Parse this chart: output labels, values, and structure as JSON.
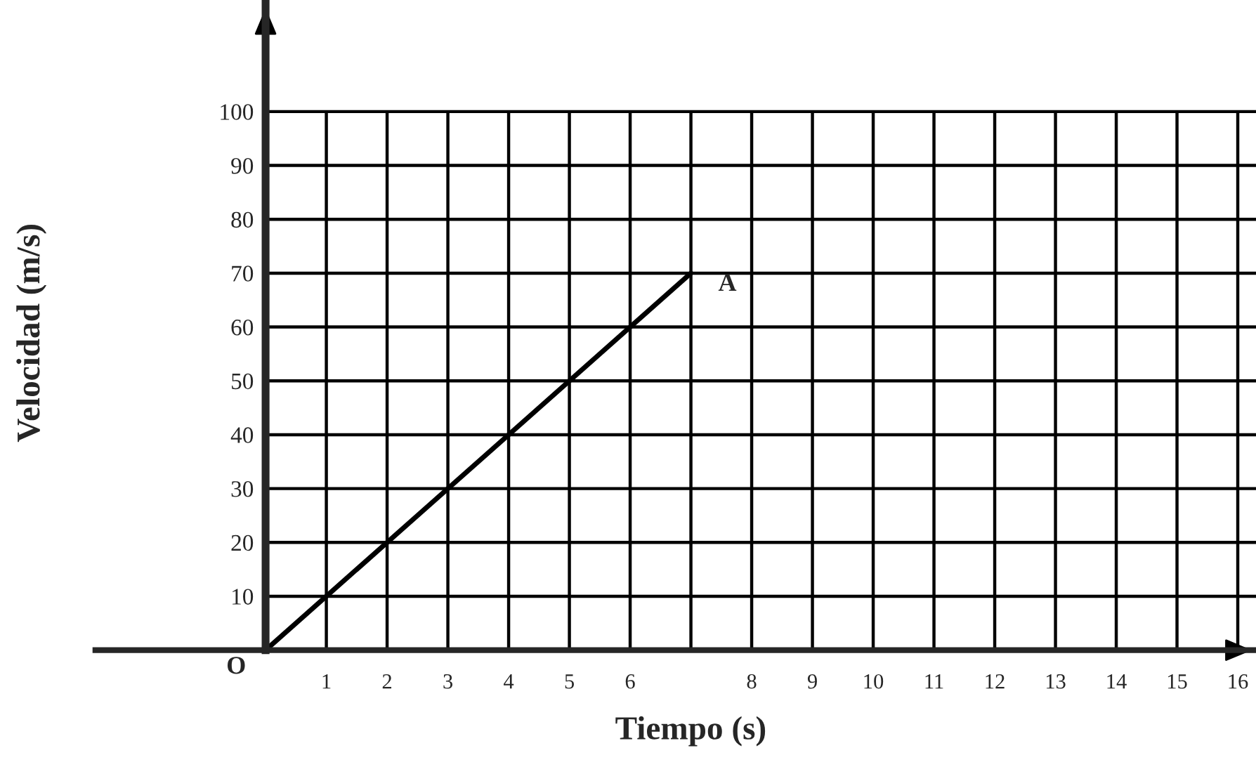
{
  "chart_data": {
    "type": "line",
    "xlabel": "Tiempo (s)",
    "ylabel": "Velocidad (m/s)",
    "x": [
      0,
      7
    ],
    "series": [
      {
        "color": "#000000",
        "values": [
          0,
          70
        ]
      }
    ],
    "xlim": [
      -2.8,
      16.3
    ],
    "ylim": [
      0,
      120
    ],
    "xticks": [
      1,
      2,
      3,
      4,
      5,
      6,
      {
        "value": 7,
        "label": null
      },
      8,
      9,
      10,
      11,
      12,
      13,
      14,
      15,
      16
    ],
    "yticks": [
      10,
      20,
      30,
      40,
      50,
      60,
      70,
      80,
      90,
      100
    ],
    "grid": true,
    "marker": "none",
    "line_style": "solid",
    "annotations": [
      {
        "text": "A",
        "x": 7,
        "y": 70
      },
      {
        "text": "O",
        "x": 0,
        "y": 0
      }
    ]
  }
}
